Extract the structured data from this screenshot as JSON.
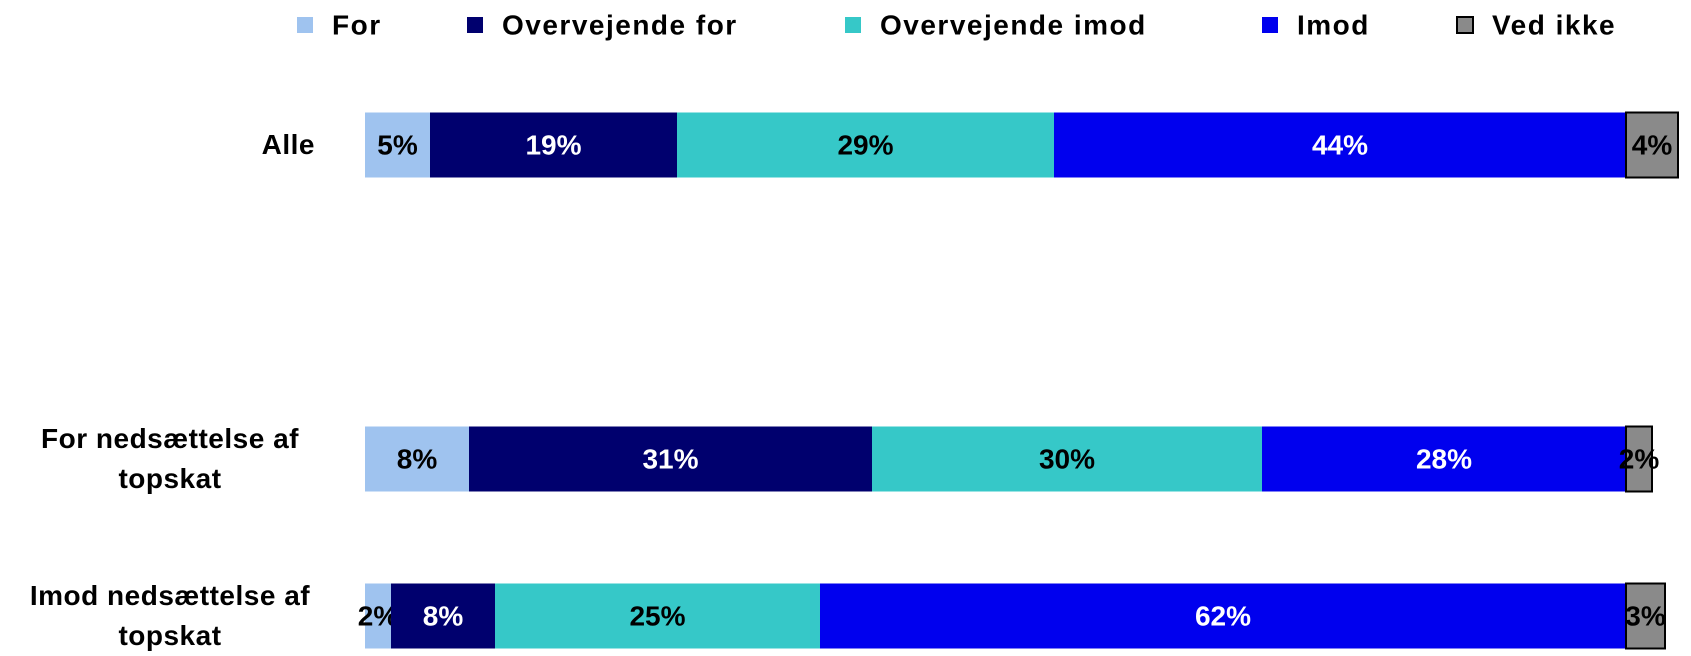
{
  "chart_data": {
    "type": "stacked-bar-horizontal",
    "categories": [
      "Alle",
      "For nedsættelse af topskat",
      "Imod nedsættelse af topskat"
    ],
    "series": [
      {
        "name": "For",
        "color": "#9fc3ef",
        "values": [
          5,
          8,
          2
        ],
        "value_labels": [
          "5%",
          "8%",
          "2%"
        ]
      },
      {
        "name": "Overvejende for",
        "color": "#00006e",
        "values": [
          19,
          31,
          8
        ],
        "value_labels": [
          "19%",
          "31%",
          "8%"
        ]
      },
      {
        "name": "Overvejende imod",
        "color": "#36c8c8",
        "values": [
          29,
          30,
          25
        ],
        "value_labels": [
          "29%",
          "30%",
          "25%"
        ]
      },
      {
        "name": "Imod",
        "color": "#0000ee",
        "values": [
          44,
          28,
          62
        ],
        "value_labels": [
          "44%",
          "28%",
          "62%"
        ]
      },
      {
        "name": "Ved ikke",
        "color": "#8a8a8a",
        "values": [
          4,
          2,
          3
        ],
        "value_labels": [
          "4%",
          "2%",
          "3%"
        ]
      }
    ],
    "xlim": [
      0,
      100
    ],
    "legend": "top"
  }
}
